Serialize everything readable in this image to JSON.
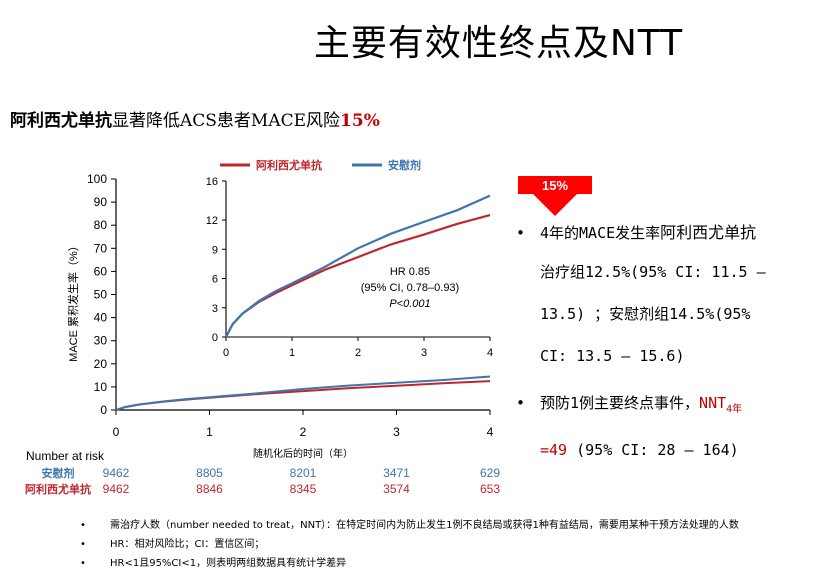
{
  "title": "主要有效性终点及NTT",
  "subtitle": {
    "drug": "阿利西尤单抗",
    "text": "显著降低ACS患者MACE风险",
    "pct": "15%"
  },
  "arrow_label": "15%",
  "bullets": [
    {
      "a": "4年的MACE发生率",
      "b": "阿利西尤单抗",
      "lines": [
        "治疗组12.5%(95% CI: 11.5 –",
        "13.5) ；安慰剂组14.5%(95%",
        "CI: 13.5 – 15.6)"
      ]
    },
    {
      "a": "预防1例主要终点事件，",
      "nnt": "NNT",
      "sub": "4年",
      "eq": "=49",
      "rest": " (95% CI: 28 – 164)"
    }
  ],
  "notes": [
    "需治疗人数（number needed to treat，NNT）：在特定时间内为防止发生1例不良结局或获得1种有益结局，需要用某种干预方法处理的人数",
    "HR：相对风险比；CI：置信区间；",
    "HR<1且95%CI<1，则表明两组数据具有统计学差异"
  ],
  "colors": {
    "alirocumab": "#c0272d",
    "placebo": "#3f75ad",
    "accent": "#c00000"
  },
  "chart_data": {
    "type": "line",
    "xlabel": "随机化后的时间（年）",
    "ylabel": "MACE 累积发生率（%）",
    "xlim": [
      0,
      4
    ],
    "ylim": [
      0,
      100
    ],
    "xticks": [
      "0",
      "1",
      "2",
      "3",
      "4"
    ],
    "yticks": [
      "0",
      "10",
      "20",
      "30",
      "40",
      "50",
      "60",
      "70",
      "80",
      "90",
      "100"
    ],
    "legend": [
      "阿利西尤单抗",
      "安慰剂"
    ],
    "series": [
      {
        "name": "阿利西尤单抗",
        "x": [
          0,
          0.1,
          0.25,
          0.5,
          0.75,
          1,
          1.5,
          2,
          2.5,
          3,
          3.5,
          4
        ],
        "y": [
          0,
          1.3,
          2.4,
          3.6,
          4.5,
          5.3,
          6.9,
          8.2,
          9.5,
          10.5,
          11.6,
          12.5
        ]
      },
      {
        "name": "安慰剂",
        "x": [
          0,
          0.1,
          0.25,
          0.5,
          0.75,
          1,
          1.5,
          2,
          2.5,
          3,
          3.5,
          4
        ],
        "y": [
          0,
          1.3,
          2.4,
          3.7,
          4.7,
          5.5,
          7.2,
          9.1,
          10.6,
          11.8,
          13.0,
          14.5
        ]
      }
    ],
    "inset": {
      "xlim": [
        0,
        4
      ],
      "ylim": [
        0,
        16
      ],
      "xticks": [
        "0",
        "1",
        "2",
        "3",
        "4"
      ],
      "yticks": [
        "0",
        "3",
        "6",
        "9",
        "12",
        "16"
      ],
      "annotation": [
        "HR 0.85",
        "(95% CI, 0.78–0.93)",
        "P<0.001"
      ]
    },
    "risk_table": {
      "title": "Number at risk",
      "rows": [
        {
          "name": "安慰剂",
          "values": [
            "9462",
            "8805",
            "8201",
            "3471",
            "629"
          ]
        },
        {
          "name": "阿利西尤单抗",
          "values": [
            "9462",
            "8846",
            "8345",
            "3574",
            "653"
          ]
        }
      ]
    }
  }
}
